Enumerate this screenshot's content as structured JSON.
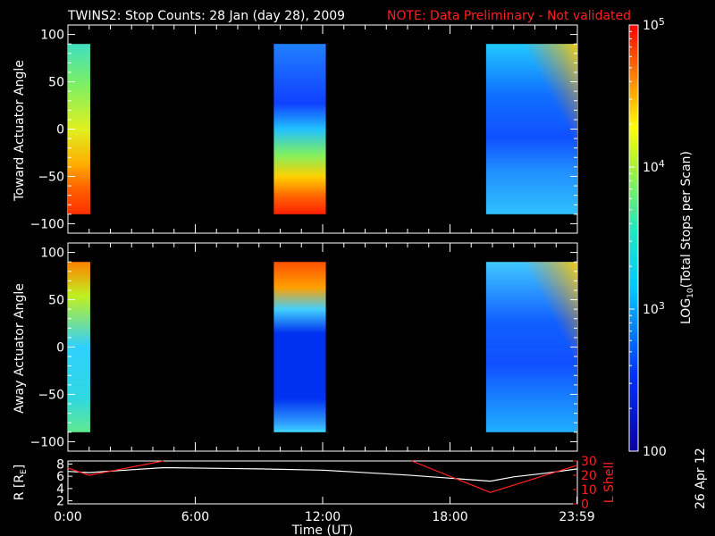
{
  "title": "TWINS2: Stop Counts: 28 Jan (day  28), 2009",
  "note": "NOTE: Data Preliminary - Not validated",
  "stamp": "26 Apr 12",
  "colors": {
    "background": "#000000",
    "axis": "#ffffff",
    "note": "#ff2020",
    "lshell": "#ff2020",
    "r": "#ffffff"
  },
  "chart_data": [
    {
      "type": "heatmap",
      "name": "toward",
      "ylabel": "Toward Actuator Angle",
      "ylim": [
        -110,
        110
      ],
      "yticks": [
        -100,
        -50,
        0,
        50,
        100
      ],
      "xlim_hours": [
        0,
        24
      ],
      "data_intervals_hours": [
        [
          0.0,
          1.05
        ],
        [
          9.7,
          12.15
        ],
        [
          19.7,
          24.0
        ]
      ],
      "colorscale": "log10",
      "zlim": [
        100,
        100000
      ]
    },
    {
      "type": "heatmap",
      "name": "away",
      "ylabel": "Away Actuator Angle",
      "ylim": [
        -110,
        110
      ],
      "yticks": [
        -100,
        -50,
        0,
        50,
        100
      ],
      "xlim_hours": [
        0,
        24
      ],
      "data_intervals_hours": [
        [
          0.0,
          1.05
        ],
        [
          9.7,
          12.15
        ],
        [
          19.7,
          24.0
        ]
      ],
      "colorscale": "log10",
      "zlim": [
        100,
        100000
      ]
    },
    {
      "type": "line",
      "name": "orbit",
      "xlabel": "Time (UT)",
      "xticks": [
        "0:00",
        "6:00",
        "12:00",
        "18:00",
        "23:59"
      ],
      "xtick_hours": [
        0,
        6,
        12,
        18,
        23.98
      ],
      "ylabel_left": "R [RE]",
      "ylabel_left_text": "R [R",
      "ylabel_left_sub": "E",
      "ylabel_left_end": "]",
      "ylim_left": [
        1.5,
        8.5
      ],
      "yticks_left": [
        2,
        4,
        6,
        8
      ],
      "ylabel_right": "L Shell",
      "ylim_right": [
        0,
        30
      ],
      "yticks_right": [
        0,
        10,
        20,
        30
      ],
      "series": [
        {
          "name": "R",
          "axis": "left",
          "x": [
            0,
            1,
            4.5,
            9,
            12,
            16,
            19.9,
            21,
            22.5,
            24
          ],
          "y": [
            6.8,
            6.6,
            7.4,
            7.2,
            7.0,
            6.2,
            5.2,
            5.9,
            6.5,
            7.2
          ]
        },
        {
          "name": "L Shell",
          "axis": "right",
          "x": [
            0,
            1,
            4.5
          ],
          "y": [
            25,
            20,
            31
          ]
        },
        {
          "name": "L Shell",
          "axis": "right",
          "x": [
            16.2,
            19.9,
            24
          ],
          "y": [
            31,
            8,
            27
          ]
        }
      ]
    },
    {
      "type": "colorbar",
      "name": "colorbar",
      "label": "LOG10(Total Stops per Scan)",
      "label_pre": "LOG",
      "label_sub": "10",
      "label_post": "(Total Stops per Scan)",
      "range": [
        100,
        100000
      ],
      "tick_values": [
        100,
        1000,
        10000,
        100000
      ],
      "tick_labels": [
        {
          "base": "100",
          "exp": ""
        },
        {
          "base": "10",
          "exp": "3"
        },
        {
          "base": "10",
          "exp": "4"
        },
        {
          "base": "10",
          "exp": "5"
        }
      ]
    }
  ]
}
